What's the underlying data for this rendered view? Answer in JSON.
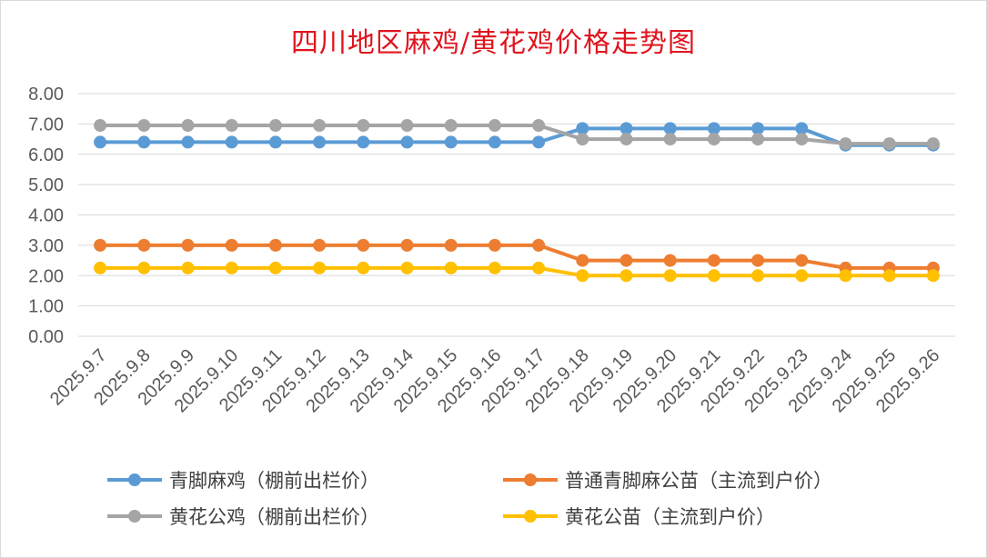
{
  "chart_data": {
    "type": "line",
    "title": "四川地区麻鸡/黄花鸡价格走势图",
    "ylim": [
      0,
      8
    ],
    "yticks": [
      "0.00",
      "1.00",
      "2.00",
      "3.00",
      "4.00",
      "5.00",
      "6.00",
      "7.00",
      "8.00"
    ],
    "grid": true,
    "legend_position": "bottom",
    "categories": [
      "2025.9.7",
      "2025.9.8",
      "2025.9.9",
      "2025.9.10",
      "2025.9.11",
      "2025.9.12",
      "2025.9.13",
      "2025.9.14",
      "2025.9.15",
      "2025.9.16",
      "2025.9.17",
      "2025.9.18",
      "2025.9.19",
      "2025.9.20",
      "2025.9.21",
      "2025.9.22",
      "2025.9.23",
      "2025.9.24",
      "2025.9.25",
      "2025.9.26"
    ],
    "series": [
      {
        "name": "青脚麻鸡（棚前出栏价）",
        "color": "#5b9bd5",
        "values": [
          6.4,
          6.4,
          6.4,
          6.4,
          6.4,
          6.4,
          6.4,
          6.4,
          6.4,
          6.4,
          6.4,
          6.85,
          6.85,
          6.85,
          6.85,
          6.85,
          6.85,
          6.3,
          6.3,
          6.3
        ]
      },
      {
        "name": "普通青脚麻公苗（主流到户价）",
        "color": "#ed7d31",
        "values": [
          3.0,
          3.0,
          3.0,
          3.0,
          3.0,
          3.0,
          3.0,
          3.0,
          3.0,
          3.0,
          3.0,
          2.5,
          2.5,
          2.5,
          2.5,
          2.5,
          2.5,
          2.25,
          2.25,
          2.25
        ]
      },
      {
        "name": "黄花公鸡（棚前出栏价）",
        "color": "#a5a5a5",
        "values": [
          6.95,
          6.95,
          6.95,
          6.95,
          6.95,
          6.95,
          6.95,
          6.95,
          6.95,
          6.95,
          6.95,
          6.5,
          6.5,
          6.5,
          6.5,
          6.5,
          6.5,
          6.35,
          6.35,
          6.35
        ]
      },
      {
        "name": "黄花公苗（主流到户价）",
        "color": "#ffc000",
        "values": [
          2.25,
          2.25,
          2.25,
          2.25,
          2.25,
          2.25,
          2.25,
          2.25,
          2.25,
          2.25,
          2.25,
          2.0,
          2.0,
          2.0,
          2.0,
          2.0,
          2.0,
          2.0,
          2.0,
          2.0
        ]
      }
    ]
  }
}
